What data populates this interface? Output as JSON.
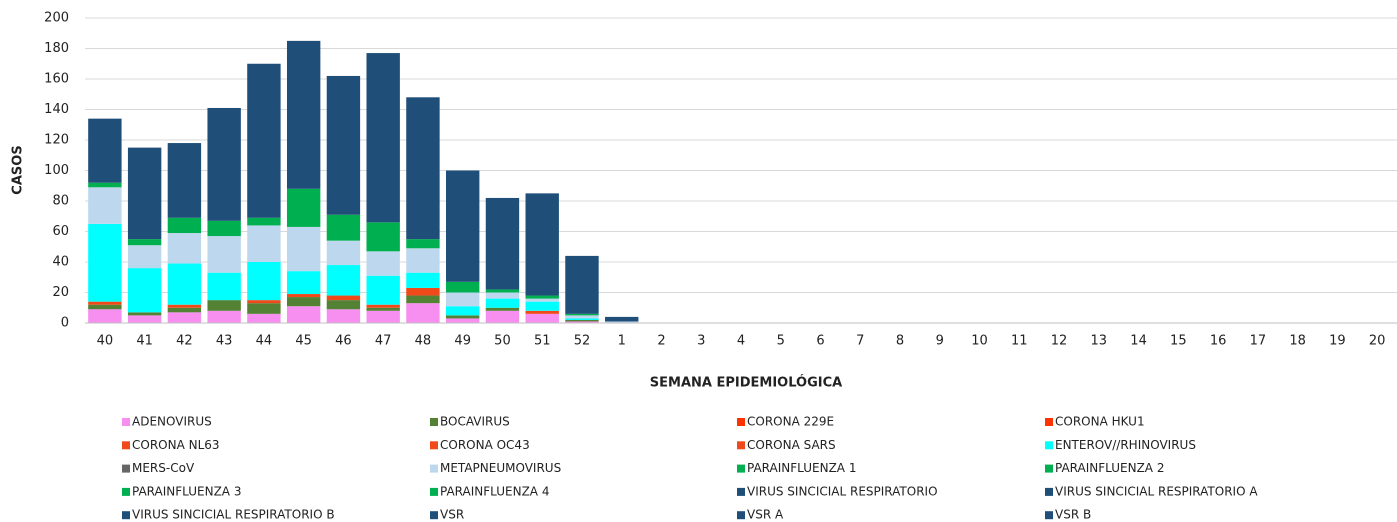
{
  "chart_data": {
    "type": "bar",
    "stacked": true,
    "x_label": "SEMANA EPIDEMIOLÓGICA",
    "y_label": "CASOS",
    "categories": [
      "40",
      "41",
      "42",
      "43",
      "44",
      "45",
      "46",
      "47",
      "48",
      "49",
      "50",
      "51",
      "52",
      "1",
      "2",
      "3",
      "4",
      "5",
      "6",
      "7",
      "8",
      "9",
      "10",
      "11",
      "12",
      "13",
      "14",
      "15",
      "16",
      "17",
      "18",
      "19",
      "20"
    ],
    "ylim": [
      0,
      200
    ],
    "yticks": [
      0,
      20,
      40,
      60,
      80,
      100,
      120,
      140,
      160,
      180,
      200
    ],
    "grid": true,
    "series": [
      {
        "name": "ADENOVIRUS",
        "color": "#f78ff0",
        "values": [
          9,
          5,
          7,
          8,
          6,
          11,
          9,
          8,
          13,
          3,
          8,
          6,
          1,
          0,
          0,
          0,
          0,
          0,
          0,
          0,
          0,
          0,
          0,
          0,
          0,
          0,
          0,
          0,
          0,
          0,
          0,
          0,
          0
        ]
      },
      {
        "name": "BOCAVIRUS",
        "color": "#548235",
        "values": [
          3,
          2,
          3,
          7,
          7,
          6,
          6,
          2,
          5,
          2,
          2,
          0,
          1,
          0,
          0,
          0,
          0,
          0,
          0,
          0,
          0,
          0,
          0,
          0,
          0,
          0,
          0,
          0,
          0,
          0,
          0,
          0,
          0
        ]
      },
      {
        "name": "CORONA 229E",
        "color": "#ff3300",
        "values": [
          0,
          0,
          0,
          0,
          0,
          0,
          0,
          0,
          0,
          0,
          0,
          0,
          0,
          0,
          0,
          0,
          0,
          0,
          0,
          0,
          0,
          0,
          0,
          0,
          0,
          0,
          0,
          0,
          0,
          0,
          0,
          0,
          0
        ]
      },
      {
        "name": "CORONA HKU1",
        "color": "#ff3300",
        "values": [
          0,
          0,
          0,
          0,
          0,
          0,
          0,
          0,
          0,
          0,
          0,
          0,
          0,
          0,
          0,
          0,
          0,
          0,
          0,
          0,
          0,
          0,
          0,
          0,
          0,
          0,
          0,
          0,
          0,
          0,
          0,
          0,
          0
        ]
      },
      {
        "name": "CORONA NL63",
        "color": "#f04a1a",
        "values": [
          0,
          0,
          0,
          0,
          0,
          0,
          0,
          0,
          0,
          0,
          0,
          0,
          0,
          0,
          0,
          0,
          0,
          0,
          0,
          0,
          0,
          0,
          0,
          0,
          0,
          0,
          0,
          0,
          0,
          0,
          0,
          0,
          0
        ]
      },
      {
        "name": "CORONA OC43",
        "color": "#f04a1a",
        "values": [
          2,
          0,
          2,
          0,
          2,
          2,
          3,
          2,
          5,
          0,
          0,
          2,
          0,
          0,
          0,
          0,
          0,
          0,
          0,
          0,
          0,
          0,
          0,
          0,
          0,
          0,
          0,
          0,
          0,
          0,
          0,
          0,
          0
        ]
      },
      {
        "name": "CORONA SARS",
        "color": "#f04a1a",
        "values": [
          0,
          0,
          0,
          0,
          0,
          0,
          0,
          0,
          0,
          0,
          0,
          0,
          0,
          0,
          0,
          0,
          0,
          0,
          0,
          0,
          0,
          0,
          0,
          0,
          0,
          0,
          0,
          0,
          0,
          0,
          0,
          0,
          0
        ]
      },
      {
        "name": "ENTEROV//RHINOVIRUS",
        "color": "#00ffff",
        "values": [
          51,
          29,
          27,
          18,
          25,
          15,
          20,
          19,
          10,
          6,
          6,
          6,
          1,
          0,
          0,
          0,
          0,
          0,
          0,
          0,
          0,
          0,
          0,
          0,
          0,
          0,
          0,
          0,
          0,
          0,
          0,
          0,
          0
        ]
      },
      {
        "name": "MERS-CoV",
        "color": "#666666",
        "values": [
          0,
          0,
          0,
          0,
          0,
          0,
          0,
          0,
          0,
          0,
          0,
          0,
          0,
          0,
          0,
          0,
          0,
          0,
          0,
          0,
          0,
          0,
          0,
          0,
          0,
          0,
          0,
          0,
          0,
          0,
          0,
          0,
          0
        ]
      },
      {
        "name": "METAPNEUMOVIRUS",
        "color": "#bdd7ee",
        "values": [
          24,
          15,
          20,
          24,
          24,
          29,
          16,
          16,
          16,
          9,
          4,
          2,
          2,
          1,
          0,
          0,
          0,
          0,
          0,
          0,
          0,
          0,
          0,
          0,
          0,
          0,
          0,
          0,
          0,
          0,
          0,
          0,
          0
        ]
      },
      {
        "name": "PARAINFLUENZA 1",
        "color": "#00b050",
        "values": [
          0,
          0,
          0,
          0,
          0,
          0,
          0,
          0,
          0,
          0,
          0,
          0,
          0,
          0,
          0,
          0,
          0,
          0,
          0,
          0,
          0,
          0,
          0,
          0,
          0,
          0,
          0,
          0,
          0,
          0,
          0,
          0,
          0
        ]
      },
      {
        "name": "PARAINFLUENZA 2",
        "color": "#00b050",
        "values": [
          0,
          0,
          0,
          0,
          0,
          0,
          0,
          0,
          0,
          0,
          0,
          0,
          0,
          0,
          0,
          0,
          0,
          0,
          0,
          0,
          0,
          0,
          0,
          0,
          0,
          0,
          0,
          0,
          0,
          0,
          0,
          0,
          0
        ]
      },
      {
        "name": "PARAINFLUENZA 3",
        "color": "#00b050",
        "values": [
          3,
          4,
          10,
          10,
          5,
          25,
          17,
          19,
          6,
          7,
          2,
          2,
          1,
          0,
          0,
          0,
          0,
          0,
          0,
          0,
          0,
          0,
          0,
          0,
          0,
          0,
          0,
          0,
          0,
          0,
          0,
          0,
          0
        ]
      },
      {
        "name": "PARAINFLUENZA 4",
        "color": "#00b050",
        "values": [
          0,
          0,
          0,
          0,
          0,
          0,
          0,
          0,
          0,
          0,
          0,
          0,
          0,
          0,
          0,
          0,
          0,
          0,
          0,
          0,
          0,
          0,
          0,
          0,
          0,
          0,
          0,
          0,
          0,
          0,
          0,
          0,
          0
        ]
      },
      {
        "name": "VIRUS SINCICIAL RESPIRATORIO",
        "color": "#1f4e79",
        "values": [
          0,
          0,
          0,
          0,
          0,
          0,
          0,
          0,
          0,
          0,
          0,
          0,
          0,
          0,
          0,
          0,
          0,
          0,
          0,
          0,
          0,
          0,
          0,
          0,
          0,
          0,
          0,
          0,
          0,
          0,
          0,
          0,
          0
        ]
      },
      {
        "name": "VIRUS SINCICIAL RESPIRATORIO A",
        "color": "#1f4e79",
        "values": [
          0,
          0,
          0,
          0,
          0,
          0,
          0,
          0,
          0,
          0,
          0,
          0,
          0,
          0,
          0,
          0,
          0,
          0,
          0,
          0,
          0,
          0,
          0,
          0,
          0,
          0,
          0,
          0,
          0,
          0,
          0,
          0,
          0
        ]
      },
      {
        "name": "VIRUS SINCICIAL RESPIRATORIO B",
        "color": "#1f4e79",
        "values": [
          0,
          0,
          0,
          0,
          0,
          0,
          0,
          0,
          0,
          0,
          0,
          0,
          0,
          0,
          0,
          0,
          0,
          0,
          0,
          0,
          0,
          0,
          0,
          0,
          0,
          0,
          0,
          0,
          0,
          0,
          0,
          0,
          0
        ]
      },
      {
        "name": "VSR",
        "color": "#1f4e79",
        "values": [
          42,
          60,
          49,
          74,
          101,
          97,
          91,
          111,
          93,
          73,
          60,
          67,
          38,
          3,
          0,
          0,
          0,
          0,
          0,
          0,
          0,
          0,
          0,
          0,
          0,
          0,
          0,
          0,
          0,
          0,
          0,
          0,
          0
        ]
      },
      {
        "name": "VSR A",
        "color": "#1f4e79",
        "values": [
          0,
          0,
          0,
          0,
          0,
          0,
          0,
          0,
          0,
          0,
          0,
          0,
          0,
          0,
          0,
          0,
          0,
          0,
          0,
          0,
          0,
          0,
          0,
          0,
          0,
          0,
          0,
          0,
          0,
          0,
          0,
          0,
          0
        ]
      },
      {
        "name": "VSR B",
        "color": "#1f4e79",
        "values": [
          0,
          0,
          0,
          0,
          0,
          0,
          0,
          0,
          0,
          0,
          0,
          0,
          0,
          0,
          0,
          0,
          0,
          0,
          0,
          0,
          0,
          0,
          0,
          0,
          0,
          0,
          0,
          0,
          0,
          0,
          0,
          0,
          0
        ]
      }
    ]
  }
}
